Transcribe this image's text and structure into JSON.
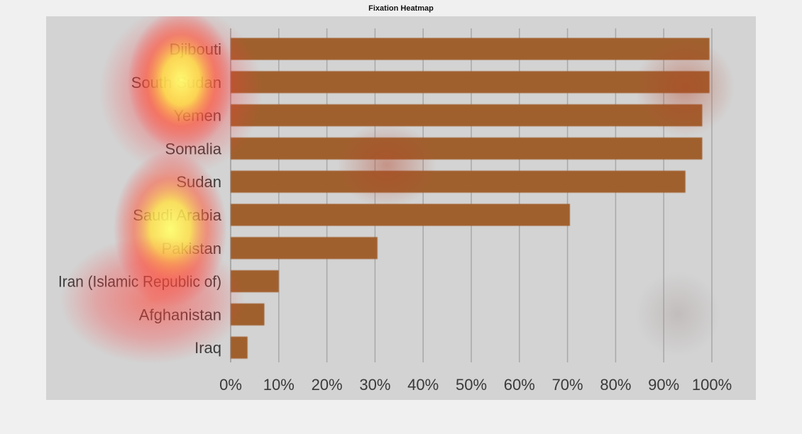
{
  "page": {
    "title": "Fixation Heatmap"
  },
  "colors": {
    "background": "#f0f0f0",
    "panel": "#d3d3d3",
    "bar": "#a0602e",
    "grid": "#a8a8a8",
    "text": "#3a3a3a",
    "heat_hot": "#ffff66",
    "heat_warm": "#ff3b3b"
  },
  "chart_data": {
    "type": "bar",
    "orientation": "horizontal",
    "title": "",
    "xlabel": "",
    "ylabel": "",
    "xlim": [
      0,
      100
    ],
    "grid": true,
    "categories": [
      "Djibouti",
      "South Sudan",
      "Yemen",
      "Somalia",
      "Sudan",
      "Saudi Arabia",
      "Pakistan",
      "Iran (Islamic Republic of)",
      "Afghanistan",
      "Iraq"
    ],
    "values": [
      99.5,
      99.5,
      98,
      98,
      94.5,
      70.5,
      30.5,
      10,
      7,
      3.5
    ],
    "x_ticks": [
      "0%",
      "10%",
      "20%",
      "30%",
      "40%",
      "50%",
      "60%",
      "70%",
      "80%",
      "90%",
      "100%"
    ],
    "tick_values": [
      0,
      10,
      20,
      30,
      40,
      50,
      60,
      70,
      80,
      90,
      100
    ]
  }
}
